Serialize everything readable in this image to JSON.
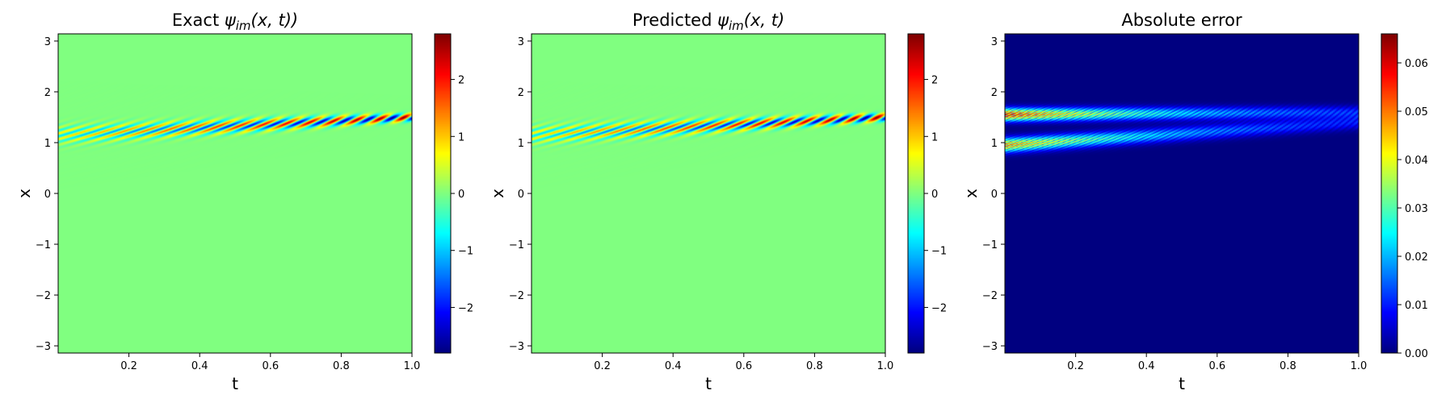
{
  "chart_data": [
    {
      "type": "heatmap",
      "title_prefix": "Exact ",
      "title_math": "ψ_im(x, t))",
      "xlabel": "t",
      "ylabel": "x",
      "xlim": [
        0.0,
        1.0
      ],
      "ylim": [
        -3.14159,
        3.14159
      ],
      "xticks": [
        0.2,
        0.4,
        0.6,
        0.8,
        1.0
      ],
      "xtick_labels": [
        "0.2",
        "0.4",
        "0.6",
        "0.8",
        "1.0"
      ],
      "yticks": [
        -3,
        -2,
        -1,
        0,
        1,
        2,
        3
      ],
      "ytick_labels": [
        "−3",
        "−2",
        "−1",
        "0",
        "1",
        "2",
        "3"
      ],
      "colormap": "jet",
      "clim": [
        -2.8,
        2.8
      ],
      "colorbar_ticks": [
        -2,
        -1,
        0,
        1,
        2
      ],
      "colorbar_labels": [
        "−2",
        "−1",
        "0",
        "1",
        "2"
      ],
      "field": {
        "kind": "wave",
        "amp_start": 0.8,
        "amp_end": 2.8,
        "center_start": 1.15,
        "center_end": 1.5
      }
    },
    {
      "type": "heatmap",
      "title_prefix": "Predicted ",
      "title_math": "ψ_im(x, t)",
      "xlabel": "t",
      "ylabel": "x",
      "xlim": [
        0.0,
        1.0
      ],
      "ylim": [
        -3.14159,
        3.14159
      ],
      "xticks": [
        0.2,
        0.4,
        0.6,
        0.8,
        1.0
      ],
      "xtick_labels": [
        "0.2",
        "0.4",
        "0.6",
        "0.8",
        "1.0"
      ],
      "yticks": [
        -3,
        -2,
        -1,
        0,
        1,
        2,
        3
      ],
      "ytick_labels": [
        "−3",
        "−2",
        "−1",
        "0",
        "1",
        "2",
        "3"
      ],
      "colormap": "jet",
      "clim": [
        -2.8,
        2.8
      ],
      "colorbar_ticks": [
        -2,
        -1,
        0,
        1,
        2
      ],
      "colorbar_labels": [
        "−2",
        "−1",
        "0",
        "1",
        "2"
      ],
      "field": {
        "kind": "wave",
        "amp_start": 0.8,
        "amp_end": 2.8,
        "center_start": 1.15,
        "center_end": 1.5
      }
    },
    {
      "type": "heatmap",
      "title_prefix": "Absolute error",
      "title_math": "",
      "xlabel": "t",
      "ylabel": "x",
      "xlim": [
        0.0,
        1.0
      ],
      "ylim": [
        -3.14159,
        3.14159
      ],
      "xticks": [
        0.2,
        0.4,
        0.6,
        0.8,
        1.0
      ],
      "xtick_labels": [
        "0.2",
        "0.4",
        "0.6",
        "0.8",
        "1.0"
      ],
      "yticks": [
        -3,
        -2,
        -1,
        0,
        1,
        2,
        3
      ],
      "ytick_labels": [
        "−3",
        "−2",
        "−1",
        "0",
        "1",
        "2",
        "3"
      ],
      "colormap": "jet",
      "clim": [
        0.0,
        0.066
      ],
      "colorbar_ticks": [
        0.0,
        0.01,
        0.02,
        0.03,
        0.04,
        0.05,
        0.06
      ],
      "colorbar_labels": [
        "0.00",
        "0.01",
        "0.02",
        "0.03",
        "0.04",
        "0.05",
        "0.06"
      ],
      "field": {
        "kind": "error",
        "peak": 0.066
      }
    }
  ]
}
